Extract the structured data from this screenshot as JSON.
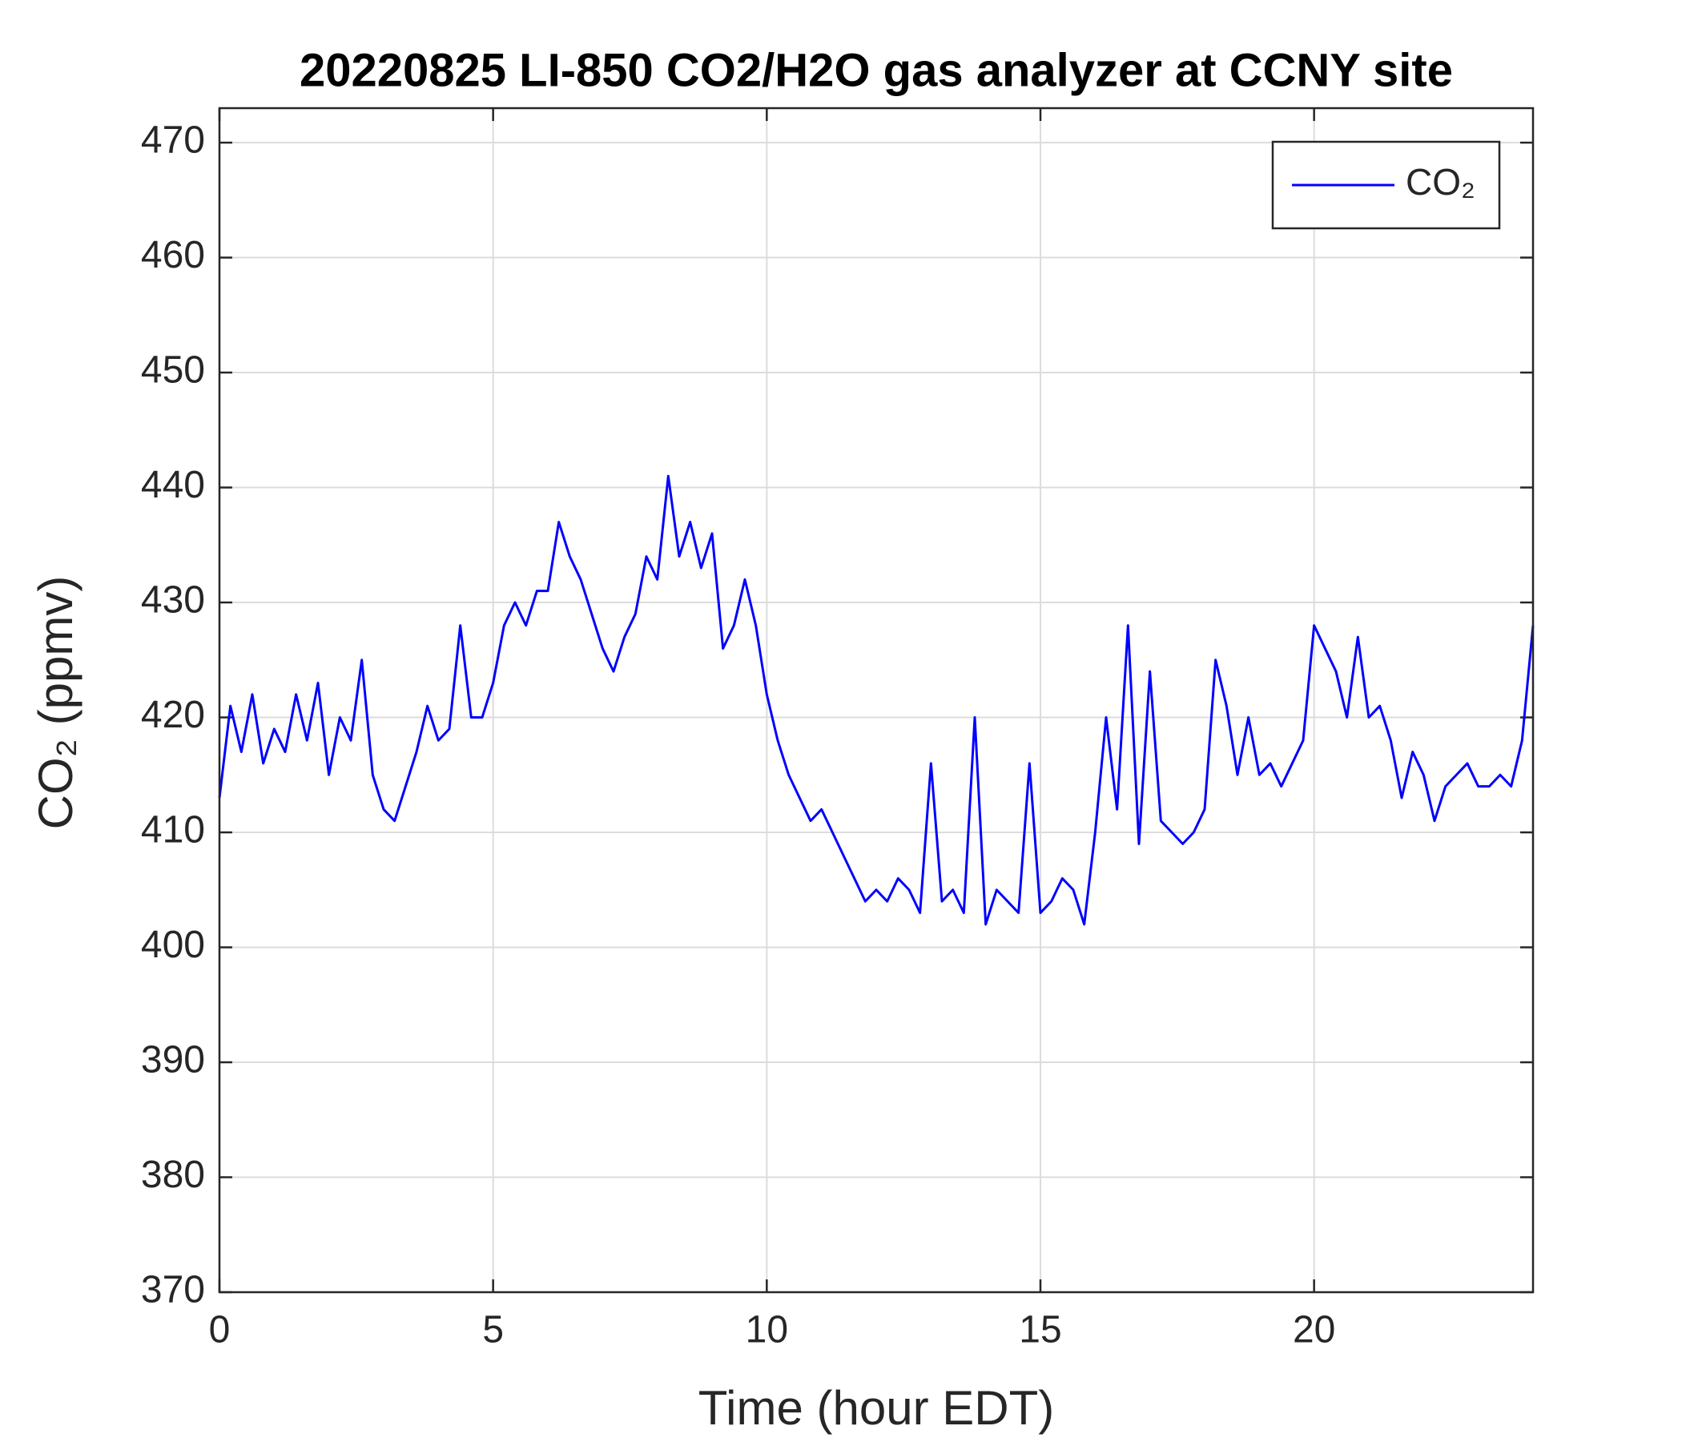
{
  "chart_data": {
    "type": "line",
    "title": "20220825 LI-850 CO2/H2O gas analyzer at CCNY site",
    "xlabel": "Time (hour EDT)",
    "ylabel": "CO₂ (ppmv)",
    "x": [
      0,
      0.2,
      0.4,
      0.6,
      0.8,
      1,
      1.2,
      1.4,
      1.6,
      1.8,
      2,
      2.2,
      2.4,
      2.6,
      2.8,
      3,
      3.2,
      3.4,
      3.6,
      3.8,
      4,
      4.2,
      4.4,
      4.6,
      4.8,
      5,
      5.2,
      5.4,
      5.6,
      5.8,
      6,
      6.2,
      6.4,
      6.6,
      6.8,
      7,
      7.2,
      7.4,
      7.6,
      7.8,
      8,
      8.2,
      8.4,
      8.6,
      8.8,
      9,
      9.2,
      9.4,
      9.6,
      9.8,
      10,
      10.2,
      10.4,
      10.6,
      10.8,
      11,
      11.2,
      11.4,
      11.6,
      11.8,
      12,
      12.2,
      12.4,
      12.6,
      12.8,
      13,
      13.2,
      13.4,
      13.6,
      13.8,
      14,
      14.2,
      14.4,
      14.6,
      14.8,
      15,
      15.2,
      15.4,
      15.6,
      15.8,
      16,
      16.2,
      16.4,
      16.6,
      16.8,
      17,
      17.2,
      17.4,
      17.6,
      17.8,
      18,
      18.2,
      18.4,
      18.6,
      18.8,
      19,
      19.2,
      19.4,
      19.6,
      19.8,
      20,
      20.2,
      20.4,
      20.6,
      20.8,
      21,
      21.2,
      21.4,
      21.6,
      21.8,
      22,
      22.2,
      22.4,
      22.6,
      22.8,
      23,
      23.2,
      23.4,
      23.6,
      23.8,
      24
    ],
    "series": [
      {
        "name": "CO₂",
        "color": "#0000ff",
        "values": [
          413,
          421,
          417,
          422,
          416,
          419,
          417,
          422,
          418,
          423,
          415,
          420,
          418,
          425,
          415,
          412,
          411,
          414,
          417,
          421,
          418,
          419,
          428,
          420,
          420,
          423,
          428,
          430,
          428,
          431,
          431,
          437,
          434,
          432,
          429,
          426,
          424,
          427,
          429,
          434,
          432,
          441,
          434,
          437,
          433,
          436,
          426,
          428,
          432,
          428,
          422,
          418,
          415,
          413,
          411,
          412,
          410,
          408,
          406,
          404,
          405,
          404,
          406,
          405,
          403,
          416,
          404,
          405,
          403,
          420,
          402,
          405,
          404,
          403,
          416,
          403,
          404,
          406,
          405,
          402,
          410,
          420,
          412,
          428,
          409,
          424,
          411,
          410,
          409,
          410,
          412,
          425,
          421,
          415,
          420,
          415,
          416,
          414,
          416,
          418,
          428,
          426,
          424,
          420,
          427,
          420,
          421,
          418,
          413,
          417,
          415,
          411,
          414,
          415,
          416,
          414,
          414,
          415,
          414,
          418,
          428
        ]
      }
    ],
    "xlim": [
      0,
      24
    ],
    "xticks": [
      0,
      5,
      10,
      15,
      20
    ],
    "ylim": [
      370,
      473
    ],
    "yticks": [
      370,
      380,
      390,
      400,
      410,
      420,
      430,
      440,
      450,
      460,
      470
    ],
    "grid": true,
    "legend": "upper right"
  }
}
